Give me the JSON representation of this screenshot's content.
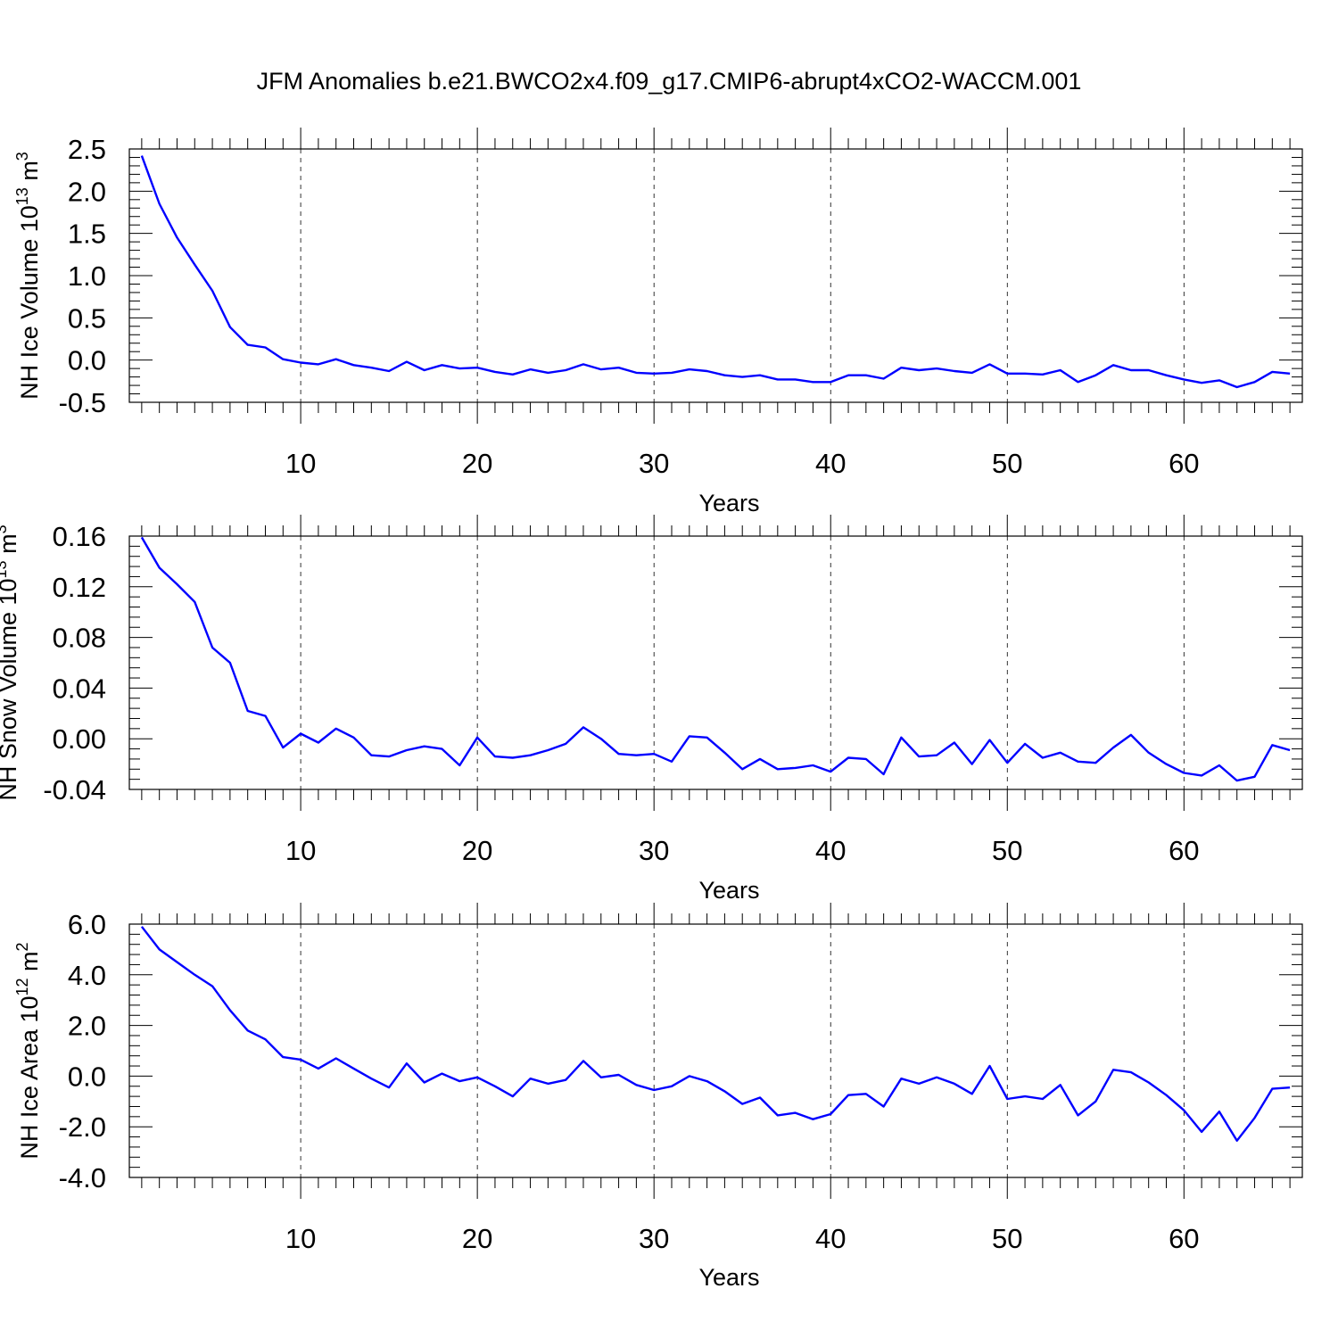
{
  "figure_title": "JFM Anomalies b.e21.BWCO2x4.f09_g17.CMIP6-abrupt4xCO2-WACCM.001",
  "line_color": "#0000ff",
  "chart_data": [
    {
      "type": "line",
      "ylabel": "NH Ice Volume 10",
      "ylabel_exponent": "13",
      "ylabel_unit": " m",
      "ylabel_unit_power": "3",
      "xlabel": "Years",
      "xlim": [
        1,
        66
      ],
      "ylim": [
        -0.5,
        2.5
      ],
      "x_ticks": [
        "10",
        "20",
        "30",
        "40",
        "50",
        "60"
      ],
      "y_ticks": [
        "2.5",
        "2.0",
        "1.5",
        "1.0",
        "0.5",
        "0.0",
        "-0.5"
      ],
      "grid": "vertical dashed at major x ticks",
      "series": [
        {
          "x_start": 1,
          "values": [
            2.42,
            1.85,
            1.45,
            1.13,
            0.82,
            0.39,
            0.18,
            0.15,
            0.01,
            -0.03,
            -0.05,
            0.01,
            -0.06,
            -0.09,
            -0.13,
            -0.02,
            -0.12,
            -0.06,
            -0.1,
            -0.09,
            -0.14,
            -0.17,
            -0.11,
            -0.15,
            -0.12,
            -0.05,
            -0.11,
            -0.09,
            -0.15,
            -0.16,
            -0.15,
            -0.11,
            -0.13,
            -0.18,
            -0.2,
            -0.18,
            -0.23,
            -0.23,
            -0.26,
            -0.26,
            -0.18,
            -0.18,
            -0.22,
            -0.09,
            -0.12,
            -0.1,
            -0.13,
            -0.15,
            -0.05,
            -0.16,
            -0.16,
            -0.17,
            -0.12,
            -0.26,
            -0.18,
            -0.06,
            -0.12,
            -0.12,
            -0.18,
            -0.23,
            -0.27,
            -0.24,
            -0.32,
            -0.26,
            -0.14,
            -0.16
          ]
        }
      ]
    },
    {
      "type": "line",
      "ylabel": "NH Snow Volume 10",
      "ylabel_exponent": "13",
      "ylabel_unit": " m",
      "ylabel_unit_power": "3",
      "xlabel": "Years",
      "xlim": [
        1,
        66
      ],
      "ylim": [
        -0.04,
        0.16
      ],
      "x_ticks": [
        "10",
        "20",
        "30",
        "40",
        "50",
        "60"
      ],
      "y_ticks": [
        "0.16",
        "0.12",
        "0.08",
        "0.04",
        "0.00",
        "-0.04"
      ],
      "grid": "vertical dashed at major x ticks",
      "series": [
        {
          "x_start": 1,
          "values": [
            0.159,
            0.135,
            0.122,
            0.108,
            0.072,
            0.06,
            0.022,
            0.018,
            -0.007,
            0.004,
            -0.003,
            0.008,
            0.001,
            -0.013,
            -0.014,
            -0.009,
            -0.006,
            -0.008,
            -0.021,
            0.001,
            -0.014,
            -0.015,
            -0.013,
            -0.009,
            -0.004,
            0.009,
            0.0,
            -0.012,
            -0.013,
            -0.012,
            -0.018,
            0.002,
            0.001,
            -0.011,
            -0.024,
            -0.016,
            -0.024,
            -0.023,
            -0.021,
            -0.026,
            -0.015,
            -0.016,
            -0.028,
            0.001,
            -0.014,
            -0.013,
            -0.003,
            -0.02,
            -0.001,
            -0.019,
            -0.004,
            -0.015,
            -0.011,
            -0.018,
            -0.019,
            -0.007,
            0.003,
            -0.011,
            -0.02,
            -0.027,
            -0.029,
            -0.021,
            -0.033,
            -0.03,
            -0.005,
            -0.009
          ]
        }
      ]
    },
    {
      "type": "line",
      "ylabel": "NH Ice Area 10",
      "ylabel_exponent": "12",
      "ylabel_unit": " m",
      "ylabel_unit_power": "2",
      "xlabel": "Years",
      "xlim": [
        1,
        66
      ],
      "ylim": [
        -4.0,
        6.0
      ],
      "x_ticks": [
        "10",
        "20",
        "30",
        "40",
        "50",
        "60"
      ],
      "y_ticks": [
        "6.0",
        "4.0",
        "2.0",
        "0.0",
        "-2.0",
        "-4.0"
      ],
      "grid": "vertical dashed at major x ticks",
      "series": [
        {
          "x_start": 1,
          "values": [
            5.9,
            5.0,
            4.5,
            4.0,
            3.55,
            2.6,
            1.8,
            1.45,
            0.75,
            0.65,
            0.3,
            0.7,
            0.3,
            -0.1,
            -0.45,
            0.5,
            -0.25,
            0.1,
            -0.2,
            -0.05,
            -0.4,
            -0.8,
            -0.1,
            -0.3,
            -0.15,
            0.6,
            -0.05,
            0.05,
            -0.35,
            -0.55,
            -0.4,
            0.0,
            -0.2,
            -0.6,
            -1.1,
            -0.85,
            -1.55,
            -1.45,
            -1.7,
            -1.5,
            -0.75,
            -0.7,
            -1.2,
            -0.1,
            -0.3,
            -0.05,
            -0.3,
            -0.7,
            0.4,
            -0.9,
            -0.8,
            -0.9,
            -0.35,
            -1.55,
            -1.0,
            0.25,
            0.15,
            -0.25,
            -0.75,
            -1.35,
            -2.2,
            -1.4,
            -2.55,
            -1.65,
            -0.5,
            -0.45
          ]
        }
      ]
    }
  ]
}
